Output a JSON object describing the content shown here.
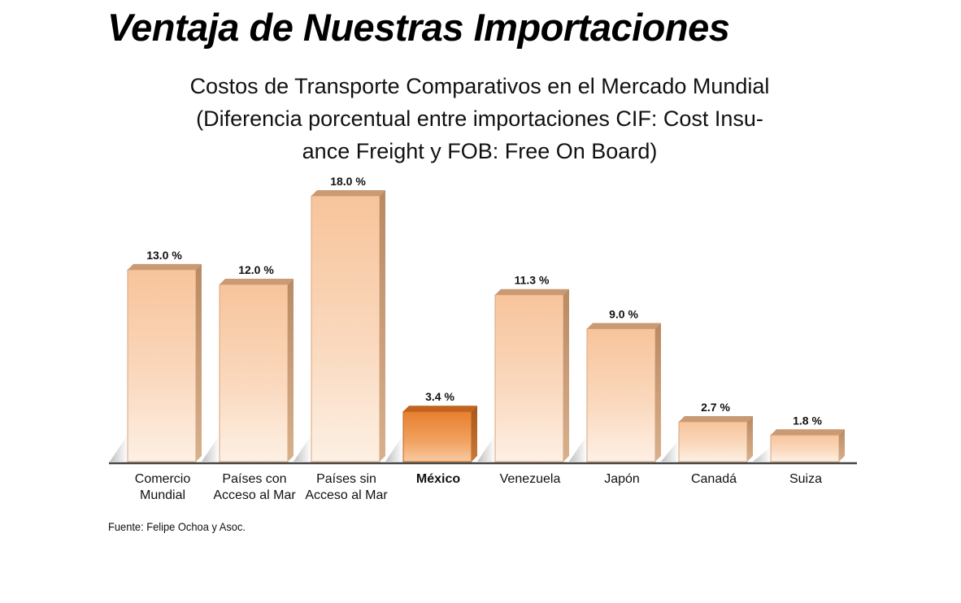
{
  "page": {
    "title": "Ventaja de Nuestras Importaciones",
    "source": "Fuente: Felipe Ochoa y Asoc."
  },
  "colors": {
    "bar_light": "#f6c8a0",
    "bar_light_top": "#fbe3cf",
    "bar_highlight": "#ea8a3a",
    "bar_highlight_top": "#f4a766",
    "axis": "#444444"
  },
  "chart_data": {
    "type": "bar",
    "title_lines": [
      "Costos de Transporte Comparativos en el Mercado Mundial",
      "(Diferencia porcentual entre importaciones CIF: Cost Insu-",
      "ance Freight y FOB: Free On Board)"
    ],
    "categories": [
      [
        "Comercio",
        "Mundial"
      ],
      [
        "Países con",
        "Acceso al Mar"
      ],
      [
        "Países sin",
        "Acceso al Mar"
      ],
      [
        "México"
      ],
      [
        "Venezuela"
      ],
      [
        "Japón"
      ],
      [
        "Canadá"
      ],
      [
        "Suiza"
      ]
    ],
    "values": [
      13.0,
      12.0,
      18.0,
      3.4,
      11.3,
      9.0,
      2.7,
      1.8
    ],
    "labels": [
      "13.0 %",
      "12.0 %",
      "18.0 %",
      "3.4 %",
      "11.3 %",
      "9.0 %",
      "2.7 %",
      "1.8 %"
    ],
    "highlight": "México",
    "ylim": [
      0,
      18
    ],
    "xlabel": "",
    "ylabel": "",
    "grid": false
  }
}
